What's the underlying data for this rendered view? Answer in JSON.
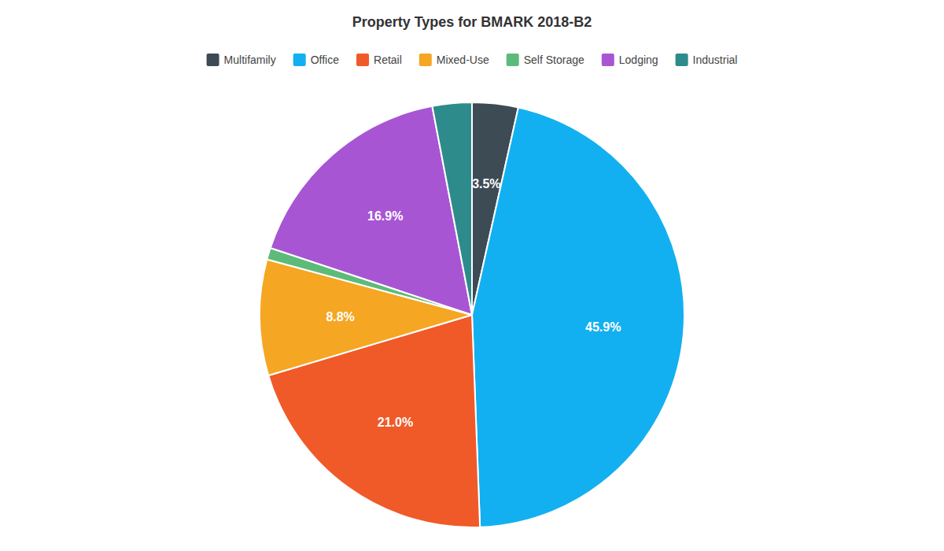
{
  "chart_data": {
    "type": "pie",
    "title": "Property Types for BMARK 2018-B2",
    "categories": [
      "Multifamily",
      "Office",
      "Retail",
      "Mixed-Use",
      "Self Storage",
      "Lodging",
      "Industrial"
    ],
    "values": [
      3.5,
      45.9,
      21.0,
      8.8,
      0.9,
      16.9,
      3.0
    ],
    "colors": [
      "#3d4b55",
      "#12b0f0",
      "#f05a28",
      "#f5a623",
      "#5dbb7a",
      "#a855d4",
      "#2e8b8b"
    ],
    "data_labels": true,
    "value_labels": [
      "3.5%",
      "45.9%",
      "21.0%",
      "8.8%",
      null,
      "16.9%",
      null
    ],
    "legend": "top"
  }
}
